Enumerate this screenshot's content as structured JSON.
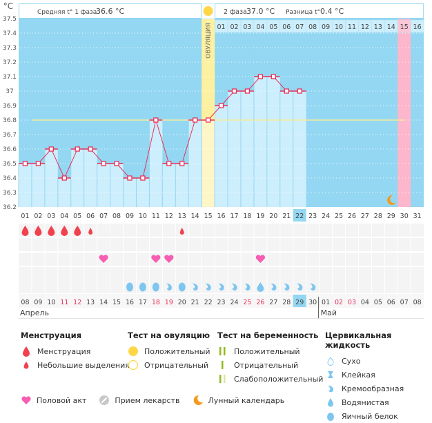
{
  "chart_data": {
    "type": "line",
    "title": "",
    "ylabel": "°C",
    "ylim": [
      36.2,
      37.5
    ],
    "yticks": [
      "37.5",
      "37.4",
      "37.3",
      "37.2",
      "37.1",
      "37",
      "36.9",
      "36.8",
      "36.7",
      "36.6",
      "36.5",
      "36.4",
      "36.3",
      "36.2"
    ],
    "cycle_days": [
      "01",
      "02",
      "03",
      "04",
      "05",
      "06",
      "07",
      "08",
      "09",
      "10",
      "11",
      "12",
      "13",
      "14",
      "15",
      "16",
      "17",
      "18",
      "19",
      "20",
      "21",
      "22",
      "23",
      "24",
      "25",
      "26",
      "27",
      "28",
      "29",
      "30",
      "31"
    ],
    "phase2_days": [
      "01",
      "02",
      "03",
      "04",
      "05",
      "06",
      "07",
      "08",
      "09",
      "10",
      "11",
      "12",
      "13",
      "14",
      "15",
      "16"
    ],
    "temperatures": [
      36.5,
      36.5,
      36.6,
      36.4,
      36.6,
      36.6,
      36.5,
      36.5,
      36.4,
      36.4,
      36.8,
      36.5,
      36.5,
      36.8,
      36.8,
      36.9,
      37.0,
      37.0,
      37.1,
      37.1,
      37.0,
      37.0
    ],
    "coverline": 36.8,
    "ovulation_day": 15,
    "ovulation_label": "ОВУЛЯЦИЯ",
    "expected_period_day": 30,
    "today_cycle_day": 22,
    "moon_day": 29,
    "header": {
      "phase1_label": "Средняя t° 1 фаза",
      "phase1_value": "36.6 °C",
      "phase2_label": "2 фаза",
      "phase2_value": "37.0 °C",
      "diff_label": "Разница t°",
      "diff_value": "0.4 °C"
    },
    "menstruation": {
      "1": "heavy",
      "2": "heavy",
      "3": "heavy",
      "4": "heavy",
      "5": "heavy",
      "6": "spotting",
      "13": "spotting"
    },
    "intercourse_days": [
      7,
      11,
      12,
      19
    ],
    "cervical_fluid": {
      "9": "eggwhite",
      "10": "eggwhite",
      "11": "eggwhite",
      "12": "creamy",
      "13": "eggwhite",
      "14": "creamy",
      "15": "creamy",
      "16": "creamy",
      "17": "creamy",
      "18": "creamy",
      "19": "watery",
      "20": "creamy",
      "21": "creamy",
      "22": "creamy",
      "23": "creamy"
    },
    "calendar_dates": [
      "08",
      "09",
      "10",
      "11",
      "12",
      "13",
      "14",
      "15",
      "16",
      "17",
      "18",
      "19",
      "20",
      "21",
      "22",
      "23",
      "24",
      "25",
      "26",
      "27",
      "28",
      "29",
      "30",
      "01",
      "02",
      "03",
      "04",
      "05",
      "06",
      "07",
      "08"
    ],
    "weekend_dates_idx": [
      3,
      4,
      10,
      11,
      17,
      18,
      24,
      25
    ],
    "today_date_idx": 21,
    "months": [
      {
        "label": "Апрель",
        "start_idx": 0
      },
      {
        "label": "Май",
        "start_idx": 23
      }
    ]
  },
  "colors": {
    "bg_blue": "#93d7f2",
    "bar_light": "#cdeefc",
    "ovulation": "#fdf0a0",
    "period_pink": "#fcb7cc",
    "line": "#e8305a",
    "coverline": "#f4ee9c",
    "blood": "#f0414f",
    "heart": "#f75db1",
    "fluid": "#7ec6f0",
    "sun": "#fed647",
    "moon": "#f39a1d",
    "test_green": "#8fba1c",
    "weekend_red": "#e8305a"
  },
  "legend": {
    "menstruation": {
      "title": "Менструация",
      "items": [
        "Менструация",
        "Небольшие выделения"
      ]
    },
    "ovulation_test": {
      "title": "Тест на овуляцию",
      "items": [
        "Положительный",
        "Отрицательный"
      ]
    },
    "pregnancy_test": {
      "title": "Тест на беременность",
      "items": [
        "Положительный",
        "Отрицательный",
        "Слабоположительный"
      ]
    },
    "cervical_fluid": {
      "title": "Цервикальная жидкость",
      "items": [
        "Сухо",
        "Клейкая",
        "Кремообразная",
        "Водянистая",
        "Яичный белок"
      ]
    },
    "bottom": [
      "Половой акт",
      "Прием лекарств",
      "Лунный календарь"
    ]
  }
}
